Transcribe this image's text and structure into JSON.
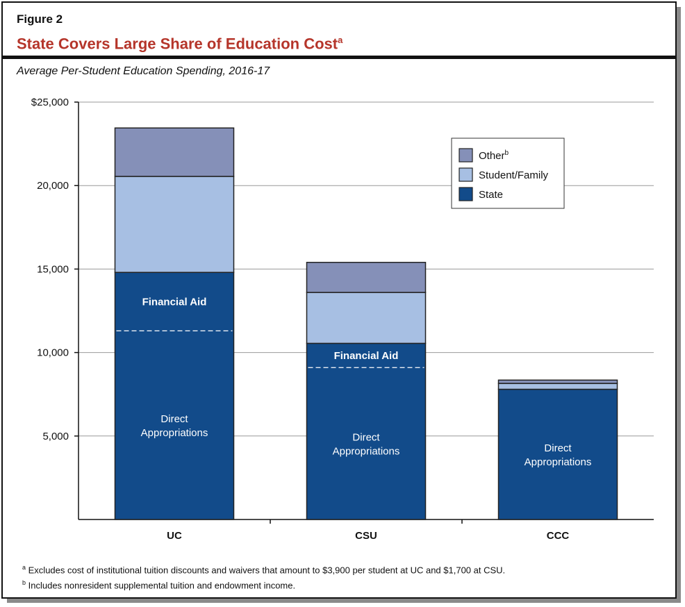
{
  "figure_label": "Figure 2",
  "title": "State Covers Large Share of Education Cost",
  "title_sup": "a",
  "subtitle": "Average Per-Student Education Spending, 2016-17",
  "footnotes": [
    {
      "mark": "a",
      "text": "Excludes cost of institutional tuition discounts and waivers that amount to $3,900 per student at UC and $1,700 at CSU."
    },
    {
      "mark": "b",
      "text": "Includes nonresident supplemental tuition and endowment income."
    }
  ],
  "chart_data": {
    "type": "bar",
    "stacked": true,
    "categories": [
      "UC",
      "CSU",
      "CCC"
    ],
    "ylim": [
      0,
      25000
    ],
    "yticks": [
      5000,
      10000,
      15000,
      20000,
      25000
    ],
    "ytick_labels": [
      "5,000",
      "10,000",
      "15,000",
      "20,000",
      "$25,000"
    ],
    "grid": true,
    "legend_position": "top-right",
    "series": [
      {
        "name": "State",
        "color": "#124b8a",
        "values": [
          14800,
          10550,
          7800
        ],
        "sub_segments": [
          {
            "label": "Direct Appropriations",
            "values": [
              11300,
              9100,
              7800
            ]
          },
          {
            "label": "Financial Aid",
            "values": [
              3500,
              1450,
              0
            ]
          }
        ]
      },
      {
        "name": "Student/Family",
        "color": "#a7bfe3",
        "values": [
          5750,
          3050,
          350
        ]
      },
      {
        "name": "Other",
        "legend_sup": "b",
        "color": "#8590b8",
        "values": [
          2900,
          1800,
          200
        ]
      }
    ],
    "legend_order": [
      "Other",
      "Student/Family",
      "State"
    ]
  }
}
